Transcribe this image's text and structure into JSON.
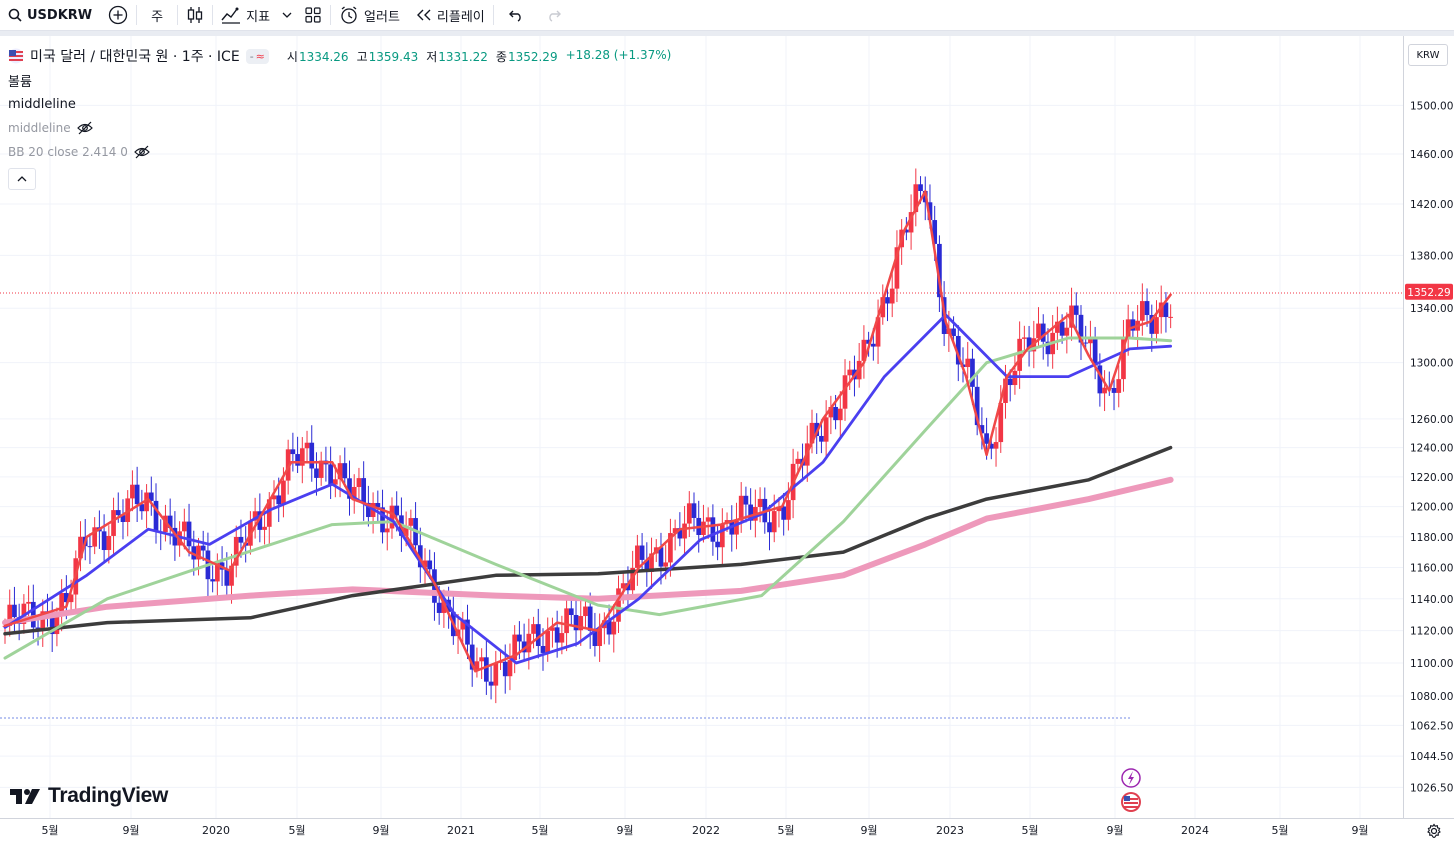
{
  "toolbar": {
    "symbol": "USDKRW",
    "interval": "주",
    "indicators_label": "지표",
    "alert_label": "얼러트",
    "replay_label": "리플레이"
  },
  "legend": {
    "title": "미국 달러 / 대한민국 원 · 1주 · ICE",
    "badge_a": "-",
    "badge_b": "≈",
    "open_key": "시",
    "open": "1334.26",
    "high_key": "고",
    "high": "1359.43",
    "low_key": "저",
    "low": "1331.22",
    "close_key": "종",
    "close": "1352.29",
    "change": "+18.28 (+1.37%)",
    "volume_label": "볼륨",
    "middleline_1": "middleline",
    "middleline_2": "middleline",
    "bb_label": "BB 20 close 2.414 0"
  },
  "price_axis": {
    "currency": "KRW",
    "last_price_label": "1352.29"
  },
  "branding": {
    "logo_text": "TradingView"
  },
  "colors": {
    "up": "#f23645",
    "down": "#2a2ad4",
    "ma_fast": "#f04848",
    "ma_blue": "#4a3ff0",
    "ma_green": "#9fd39a",
    "ma_black": "#3c3c3c",
    "ma_pink": "#ee99bb",
    "last_price": "#f23645"
  },
  "chart_data": {
    "type": "line",
    "title": "미국 달러 / 대한민국 원 · 1주 · ICE",
    "scale": "log",
    "y_ticks": [
      1026.5,
      1044.5,
      1062.5,
      1080.0,
      1100.0,
      1120.0,
      1140.0,
      1160.0,
      1180.0,
      1200.0,
      1220.0,
      1240.0,
      1260.0,
      1300.0,
      1340.0,
      1380.0,
      1420.0,
      1460.0,
      1500.0
    ],
    "x_ticks": [
      "5월",
      "9월",
      "2020",
      "5월",
      "9월",
      "2021",
      "5월",
      "9월",
      "2022",
      "5월",
      "9월",
      "2023",
      "5월",
      "9월",
      "2024",
      "5월",
      "9월"
    ],
    "series": [
      {
        "x": [
          "2019-01",
          "2019-04",
          "2019-05",
          "2019-08",
          "2019-10",
          "2019-12",
          "2020-03",
          "2020-05",
          "2020-06",
          "2020-08",
          "2020-10",
          "2020-12",
          "2021-02",
          "2021-04",
          "2021-06",
          "2021-08",
          "2021-10",
          "2021-12",
          "2022-03",
          "2022-05",
          "2022-07",
          "2022-09",
          "2022-10",
          "2022-11",
          "2022-12",
          "2023-01",
          "2023-02",
          "2023-03",
          "2023-05",
          "2023-06",
          "2023-07",
          "2023-08",
          "2023-09",
          "2023-10"
        ],
        "values": [
          1123,
          1135,
          1180,
          1205,
          1170,
          1158,
          1230,
          1230,
          1205,
          1195,
          1150,
          1095,
          1105,
          1125,
          1120,
          1160,
          1185,
          1188,
          1200,
          1260,
          1300,
          1400,
          1430,
          1330,
          1290,
          1235,
          1290,
          1310,
          1335,
          1305,
          1280,
          1325,
          1330,
          1350
        ]
      },
      {
        "x": [
          "2019-01",
          "2019-05",
          "2019-08",
          "2019-11",
          "2020-02",
          "2020-05",
          "2020-08",
          "2020-11",
          "2021-02",
          "2021-05",
          "2021-08",
          "2021-11",
          "2022-02",
          "2022-05",
          "2022-08",
          "2022-11",
          "2023-02",
          "2023-05",
          "2023-08",
          "2023-10"
        ],
        "values": [
          1122,
          1155,
          1185,
          1175,
          1198,
          1215,
          1190,
          1130,
          1100,
          1112,
          1140,
          1178,
          1195,
          1230,
          1290,
          1335,
          1290,
          1290,
          1310,
          1312
        ]
      },
      {
        "x": [
          "2019-01",
          "2019-06",
          "2019-11",
          "2020-05",
          "2020-08",
          "2021-01",
          "2021-06",
          "2021-09",
          "2022-02",
          "2022-06",
          "2022-10",
          "2023-01",
          "2023-05",
          "2023-08",
          "2023-10"
        ],
        "values": [
          1103,
          1140,
          1162,
          1188,
          1190,
          1162,
          1136,
          1130,
          1142,
          1190,
          1252,
          1300,
          1318,
          1318,
          1316
        ]
      },
      {
        "x": [
          "2019-01",
          "2019-06",
          "2020-01",
          "2020-06",
          "2021-01",
          "2021-06",
          "2022-01",
          "2022-06",
          "2022-10",
          "2023-01",
          "2023-06",
          "2023-10"
        ],
        "values": [
          1118,
          1125,
          1128,
          1142,
          1155,
          1156,
          1162,
          1170,
          1192,
          1205,
          1218,
          1240
        ]
      },
      {
        "x": [
          "2019-01",
          "2019-06",
          "2020-01",
          "2020-06",
          "2021-01",
          "2021-06",
          "2022-01",
          "2022-06",
          "2022-10",
          "2023-01",
          "2023-06",
          "2023-10"
        ],
        "values": [
          1125,
          1135,
          1142,
          1146,
          1142,
          1140,
          1145,
          1155,
          1175,
          1192,
          1205,
          1218
        ]
      }
    ],
    "last_price": 1352.29,
    "candles_x_range": [
      "2019-01",
      "2023-10"
    ],
    "grid": true
  }
}
